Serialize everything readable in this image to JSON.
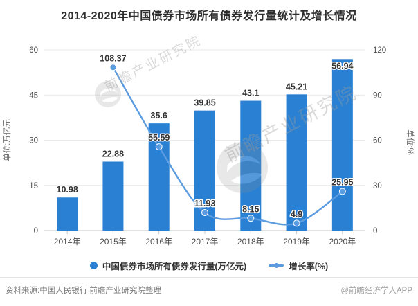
{
  "title": "2014-2020年中国债券市场所有债券发行量统计及增长情况",
  "chart_data": {
    "type": "bar",
    "subtype": "bar-line-combo",
    "categories": [
      "2014年",
      "2015年",
      "2016年",
      "2017年",
      "2018年",
      "2019年",
      "2020年"
    ],
    "series": [
      {
        "name": "中国债券市场所有债券发行量(万亿元)",
        "type": "bar",
        "y_axis": "left",
        "values": [
          10.98,
          22.88,
          35.6,
          39.85,
          43.1,
          45.21,
          56.94
        ],
        "color": "#2a80d2"
      },
      {
        "name": "增长率(%)",
        "type": "line",
        "y_axis": "right",
        "values": [
          null,
          108.37,
          55.59,
          11.93,
          8.15,
          4.9,
          25.95
        ],
        "color": "#5b9be0",
        "smooth": true
      }
    ],
    "left_axis": {
      "title": "单位:万亿元",
      "ticks": [
        0,
        15,
        30,
        45,
        60
      ],
      "range": [
        0,
        60
      ]
    },
    "right_axis": {
      "title": "单位:%",
      "ticks": [
        0,
        30,
        60,
        90,
        120
      ],
      "range": [
        0,
        120
      ]
    },
    "grid": true,
    "legend_position": "bottom"
  },
  "footer": {
    "source": "资料来源:中国人民银行 前瞻产业研究院整理",
    "credit": "@前瞻经济学人APP"
  },
  "watermark": {
    "text": "前瞻产业研究院"
  }
}
